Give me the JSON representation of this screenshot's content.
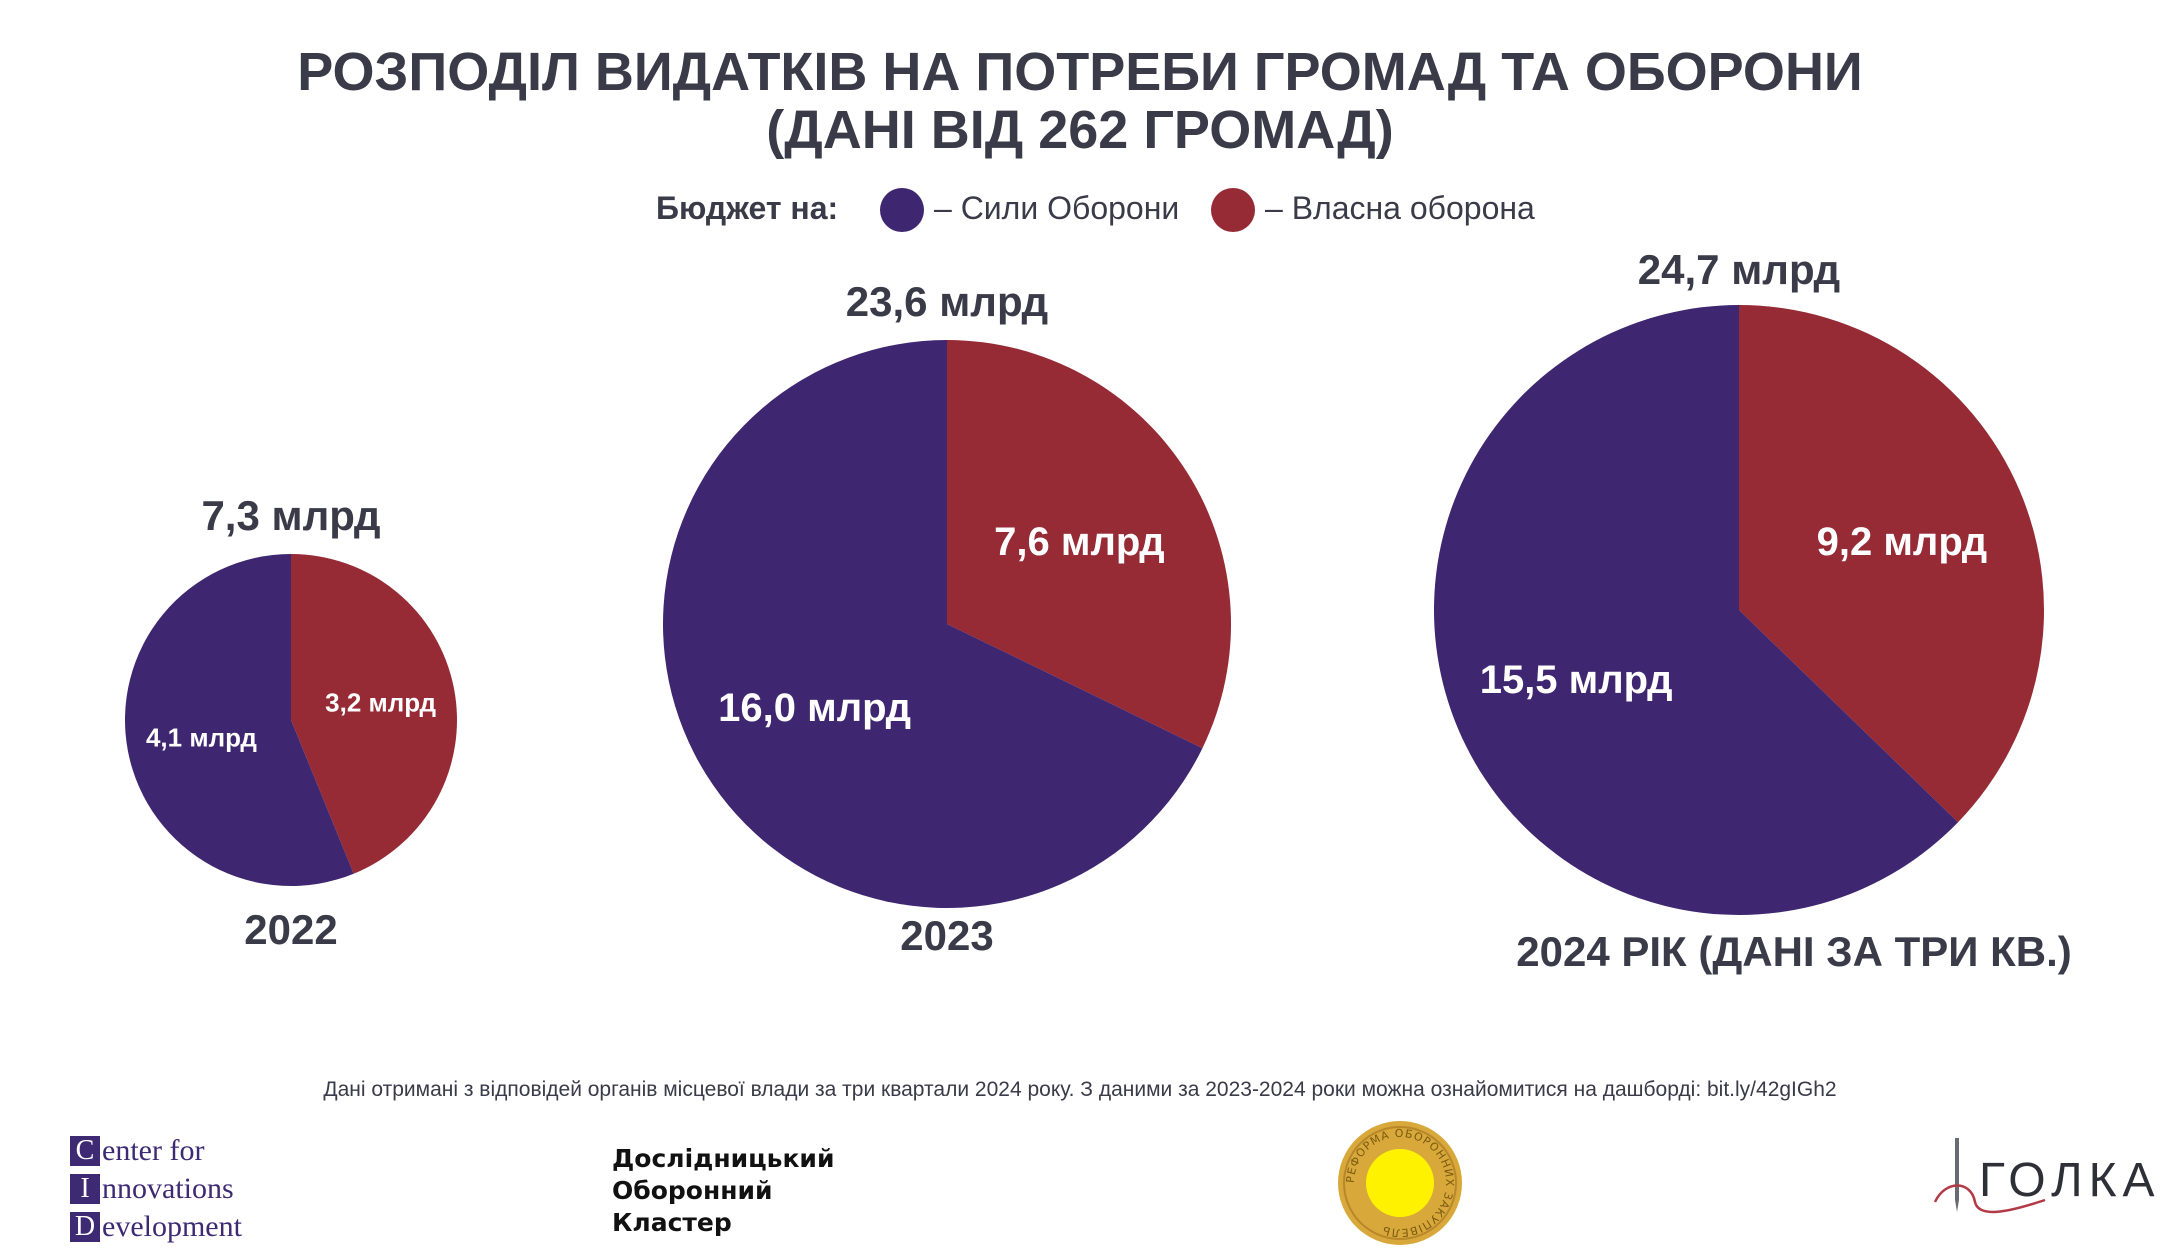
{
  "title_line1": "РОЗПОДІЛ ВИДАТКІВ НА ПОТРЕБИ ГРОМАД ТА ОБОРОНИ",
  "title_line2": "(ДАНІ ВІД 262 ГРОМАД)",
  "legend": {
    "prefix": "Бюджет на:",
    "items": [
      {
        "label": "– Сили Оборони",
        "color": "#3f2670"
      },
      {
        "label": "– Власна оборона",
        "color": "#962b35"
      }
    ]
  },
  "chart_data": [
    {
      "type": "pie",
      "title": "2022",
      "total_label": "7,3 млрд",
      "slices": [
        {
          "value": 4.1,
          "label": "4,1 млрд",
          "color": "#3f2670"
        },
        {
          "value": 3.2,
          "label": "3,2 млрд",
          "color": "#962b35"
        }
      ]
    },
    {
      "type": "pie",
      "title": "2023",
      "total_label": "23,6 млрд",
      "slices": [
        {
          "value": 16.0,
          "label": "16,0 млрд",
          "color": "#3f2670"
        },
        {
          "value": 7.6,
          "label": "7,6 млрд",
          "color": "#962b35"
        }
      ]
    },
    {
      "type": "pie",
      "title": "2024 РІК (ДАНІ ЗА ТРИ КВ.)",
      "total_label": "24,7 млрд",
      "slices": [
        {
          "value": 15.5,
          "label": "15,5 млрд",
          "color": "#3f2670"
        },
        {
          "value": 9.2,
          "label": "9,2 млрд",
          "color": "#962b35"
        }
      ]
    }
  ],
  "footnote": "Дані отримані з відповідей органів місцевої влади за три квартали 2024 року. З даними за 2023-2024 роки можна ознайомитися на дашборді: bit.ly/42gIGh2",
  "logos": {
    "cid": [
      {
        "letter": "C",
        "rest": "enter for"
      },
      {
        "letter": "I",
        "rest": "nnovations"
      },
      {
        "letter": "D",
        "rest": "evelopment"
      }
    ],
    "cluster": [
      "Дослідницький",
      "Оборонний",
      "Кластер"
    ],
    "seal_text": "РЕФОРМА ОБОРОННИХ ЗАКУПІВЕЛЬ",
    "holka": "ГОЛКА"
  }
}
